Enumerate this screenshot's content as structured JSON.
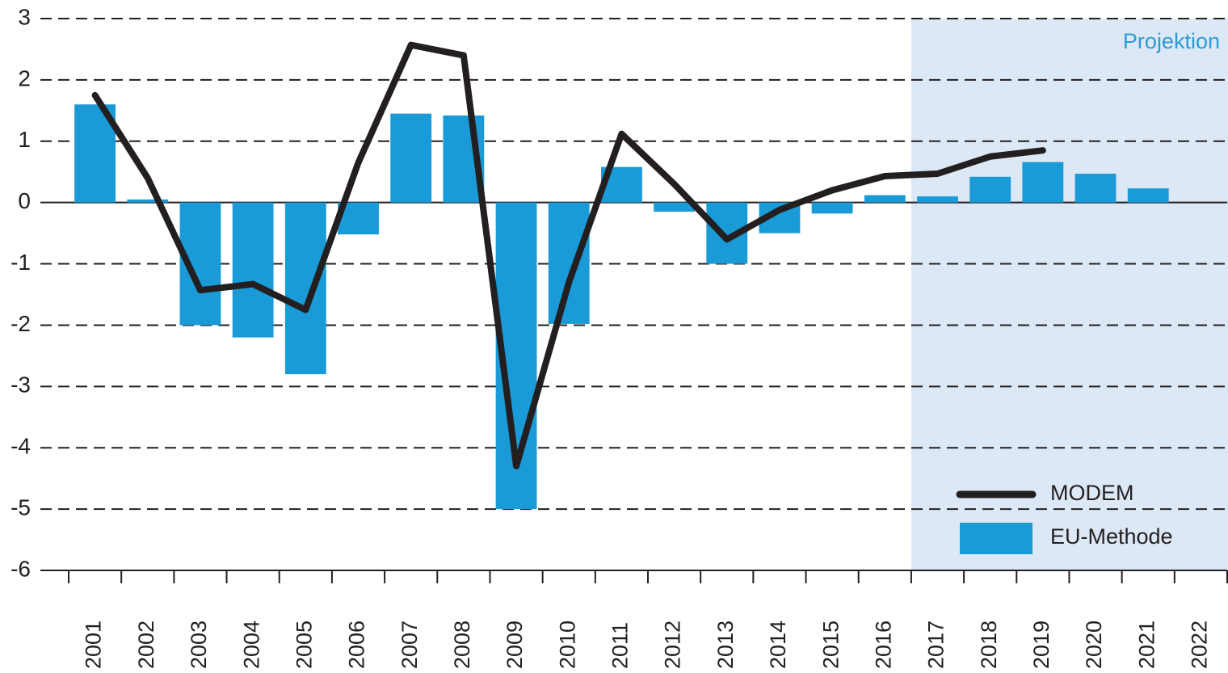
{
  "chart_data": {
    "type": "bar",
    "categories": [
      "2001",
      "2002",
      "2003",
      "2004",
      "2005",
      "2006",
      "2007",
      "2008",
      "2009",
      "2010",
      "2011",
      "2012",
      "2013",
      "2014",
      "2015",
      "2016",
      "2017",
      "2018",
      "2019",
      "2020",
      "2021",
      "2022"
    ],
    "series": [
      {
        "name": "MODEM",
        "type": "line",
        "color": "#231f20",
        "values": [
          1.75,
          0.4,
          -1.43,
          -1.33,
          -1.75,
          0.65,
          2.57,
          2.4,
          -4.3,
          -1.3,
          1.12,
          0.3,
          -0.6,
          -0.12,
          0.2,
          0.43,
          0.47,
          0.75,
          0.85,
          null,
          null,
          null
        ]
      },
      {
        "name": "EU-Methode",
        "type": "bar",
        "color": "#1a9ad6",
        "values": [
          1.6,
          0.05,
          -2.0,
          -2.2,
          -2.8,
          -0.52,
          1.45,
          1.42,
          -5.0,
          -1.98,
          0.58,
          -0.15,
          -1.0,
          -0.5,
          -0.18,
          0.12,
          0.1,
          0.42,
          0.66,
          0.47,
          0.23,
          null
        ]
      }
    ],
    "ylim": [
      -6,
      3
    ],
    "yticks": [
      -6,
      -5,
      -4,
      -3,
      -2,
      -1,
      0,
      1,
      2,
      3
    ],
    "grid": true,
    "projection": {
      "label": "Projektion",
      "from": "2017",
      "color": "#dce8f5",
      "text_color": "#2c9ad8"
    },
    "legend": "lower right"
  }
}
